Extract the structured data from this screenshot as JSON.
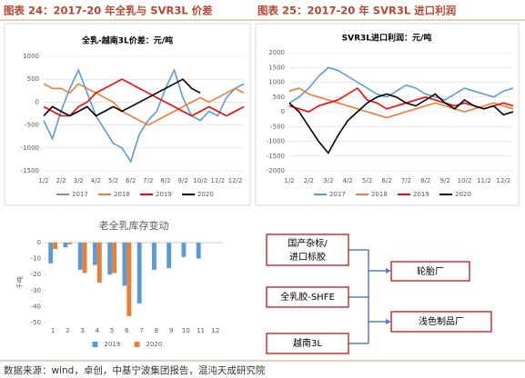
{
  "headers": [
    "图表 24：2017-20 年全乳与 SVR3L 价差",
    "图表 25：2017-20 年 SVR3L 进口利润"
  ],
  "chart_data": [
    {
      "type": "line",
      "title": "全乳-越南3L价差：元/吨",
      "categories": [
        "1/2",
        null,
        "2/2",
        null,
        "3/2",
        null,
        "4/2",
        null,
        "5/2",
        null,
        "6/2",
        null,
        "7/2",
        null,
        "8/2",
        null,
        "9/2",
        null,
        "10/2",
        null,
        "11/2",
        null,
        "12/2",
        null
      ],
      "ylim": [
        -1500,
        1000
      ],
      "yticks": [
        -1500,
        -1000,
        -500,
        0,
        500,
        1000
      ],
      "grid": true,
      "legend": "bottom",
      "series": [
        {
          "name": "2017",
          "color": "#5b9bd5",
          "values": [
            -400,
            -800,
            -200,
            300,
            700,
            200,
            -300,
            -600,
            -900,
            -1000,
            -1300,
            -700,
            -400,
            -200,
            300,
            700,
            100,
            -300,
            -400,
            -200,
            -300,
            100,
            300,
            400
          ]
        },
        {
          "name": "2018",
          "color": "#ed7d31",
          "values": [
            400,
            300,
            300,
            200,
            400,
            300,
            200,
            100,
            0,
            -200,
            -300,
            -400,
            -500,
            -400,
            -300,
            -200,
            -100,
            0,
            100,
            0,
            100,
            200,
            300,
            200
          ]
        },
        {
          "name": "2019",
          "color": "#ff0000",
          "values": [
            -100,
            -200,
            -300,
            -300,
            -100,
            0,
            200,
            300,
            400,
            500,
            400,
            300,
            200,
            100,
            0,
            -100,
            -200,
            -300,
            -200,
            -100,
            -200,
            -300,
            -200,
            -100
          ]
        },
        {
          "name": "2020",
          "color": "#000000",
          "values": [
            -300,
            -100,
            -200,
            -300,
            -200,
            -100,
            -300,
            -200,
            -100,
            -200,
            -100,
            0,
            100,
            200,
            300,
            400,
            500,
            300,
            200,
            null,
            null,
            null,
            null,
            null
          ]
        }
      ]
    },
    {
      "type": "line",
      "title": "SVR3L进口利润：元/吨",
      "categories": [
        "1/2",
        null,
        "2/2",
        null,
        "3/2",
        null,
        "4/2",
        null,
        "5/2",
        null,
        "6/2",
        null,
        "7/2",
        null,
        "8/2",
        null,
        "9/2",
        null,
        "10/2",
        null,
        "11/2",
        null,
        "12/2",
        null
      ],
      "ylim": [
        -2000,
        2000
      ],
      "yticks": [
        -2000,
        -1500,
        -1000,
        -500,
        0,
        500,
        1000,
        1500,
        2000
      ],
      "grid": true,
      "legend": "bottom",
      "series": [
        {
          "name": "2017",
          "color": "#5b9bd5",
          "values": [
            300,
            500,
            800,
            1200,
            1500,
            1400,
            1200,
            1000,
            800,
            600,
            500,
            700,
            900,
            800,
            600,
            500,
            400,
            600,
            800,
            700,
            600,
            500,
            700,
            800
          ]
        },
        {
          "name": "2018",
          "color": "#ed7d31",
          "values": [
            700,
            800,
            600,
            500,
            400,
            300,
            200,
            100,
            0,
            -100,
            -200,
            -100,
            0,
            100,
            200,
            300,
            200,
            100,
            0,
            100,
            200,
            300,
            200,
            100
          ]
        },
        {
          "name": "2019",
          "color": "#ff0000",
          "values": [
            200,
            100,
            0,
            200,
            300,
            400,
            600,
            800,
            400,
            300,
            100,
            200,
            300,
            400,
            500,
            400,
            300,
            200,
            300,
            200,
            100,
            200,
            300,
            200
          ]
        },
        {
          "name": "2020",
          "color": "#000000",
          "values": [
            300,
            0,
            -500,
            -1000,
            -1400,
            -800,
            -300,
            0,
            300,
            500,
            600,
            500,
            300,
            200,
            400,
            600,
            300,
            100,
            400,
            200,
            100,
            200,
            -100,
            0
          ]
        }
      ]
    },
    {
      "type": "bar",
      "title": "老全乳库存变动",
      "ylabel": "千吨",
      "categories": [
        "1",
        "2",
        "3",
        "4",
        "5",
        "6",
        "7",
        "8",
        "9",
        "10",
        "11",
        "12"
      ],
      "ylim": [
        -50,
        0
      ],
      "yticks": [
        -50,
        -40,
        -30,
        -20,
        -10,
        0
      ],
      "legend": "bottom",
      "series": [
        {
          "name": "2019",
          "color": "#5b9bd5",
          "values": [
            -13,
            -3,
            -17,
            -14,
            -20,
            -27,
            -38,
            -17,
            -16,
            -9,
            -10,
            null
          ]
        },
        {
          "name": "2020",
          "color": "#ed7d31",
          "values": [
            -4,
            -1,
            -19,
            -25,
            -19,
            -46,
            null,
            null,
            null,
            null,
            null,
            null
          ]
        }
      ]
    }
  ],
  "diagram": {
    "nodes": [
      {
        "label": [
          "国产杂标/",
          "进口标胶"
        ]
      },
      {
        "label": [
          "全乳胶-SHFE"
        ]
      },
      {
        "label": [
          "越南3L"
        ]
      },
      {
        "label": [
          "轮胎厂"
        ]
      },
      {
        "label": [
          "浅色制品厂"
        ]
      }
    ]
  },
  "source": "数据来源：wind，卓创，中基宁波集团报告，混沌天成研究院"
}
